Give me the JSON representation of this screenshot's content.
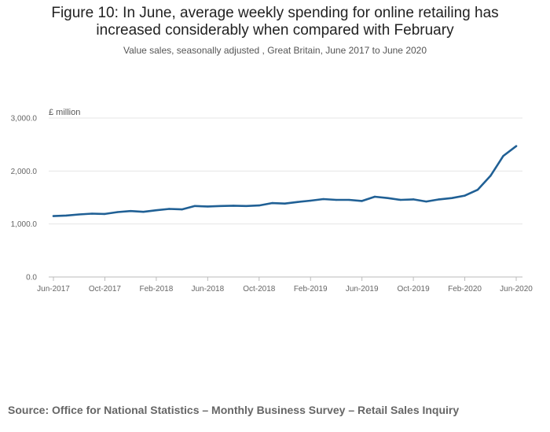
{
  "title_lines": [
    "Figure 10: In June, average weekly spending for online retailing has",
    "increased considerably when compared with February"
  ],
  "subtitle": "Value sales, seasonally adjusted , Great Britain, June 2017 to June 2020",
  "source": "Source: Office for National Statistics – Monthly Business Survey – Retail Sales Inquiry",
  "colors": {
    "line": "#206095",
    "grid": "#e5e5e5",
    "axis": "#bbbbbb"
  },
  "chart_data": {
    "type": "line",
    "title": "Figure 10: In June, average weekly spending for online retailing has increased considerably when compared with February",
    "subtitle": "Value sales, seasonally adjusted , Great Britain, June 2017 to June 2020",
    "ylabel": "£ million",
    "xlabel": "",
    "ylim": [
      0,
      3000
    ],
    "yticks": [
      0,
      1000,
      2000,
      3000
    ],
    "ytick_labels": [
      "0.0",
      "1,000.0",
      "2,000.0",
      "3,000.0"
    ],
    "xtick_labels": [
      "Jun-2017",
      "Oct-2017",
      "Feb-2018",
      "Jun-2018",
      "Oct-2018",
      "Feb-2019",
      "Jun-2019",
      "Oct-2019",
      "Feb-2020",
      "Jun-2020"
    ],
    "x": [
      "Jun-2017",
      "Jul-2017",
      "Aug-2017",
      "Sep-2017",
      "Oct-2017",
      "Nov-2017",
      "Dec-2017",
      "Jan-2018",
      "Feb-2018",
      "Mar-2018",
      "Apr-2018",
      "May-2018",
      "Jun-2018",
      "Jul-2018",
      "Aug-2018",
      "Sep-2018",
      "Oct-2018",
      "Nov-2018",
      "Dec-2018",
      "Jan-2019",
      "Feb-2019",
      "Mar-2019",
      "Apr-2019",
      "May-2019",
      "Jun-2019",
      "Jul-2019",
      "Aug-2019",
      "Sep-2019",
      "Oct-2019",
      "Nov-2019",
      "Dec-2019",
      "Jan-2020",
      "Feb-2020",
      "Mar-2020",
      "Apr-2020",
      "May-2020",
      "Jun-2020"
    ],
    "series": [
      {
        "name": "Online retailing (£ million)",
        "values": [
          1150,
          1160,
          1180,
          1195,
          1190,
          1225,
          1245,
          1230,
          1260,
          1285,
          1275,
          1340,
          1330,
          1340,
          1345,
          1340,
          1350,
          1395,
          1385,
          1415,
          1440,
          1470,
          1455,
          1455,
          1435,
          1515,
          1490,
          1455,
          1465,
          1425,
          1465,
          1490,
          1535,
          1645,
          1910,
          2285,
          2470
        ]
      }
    ],
    "grid": true,
    "legend": "none"
  }
}
